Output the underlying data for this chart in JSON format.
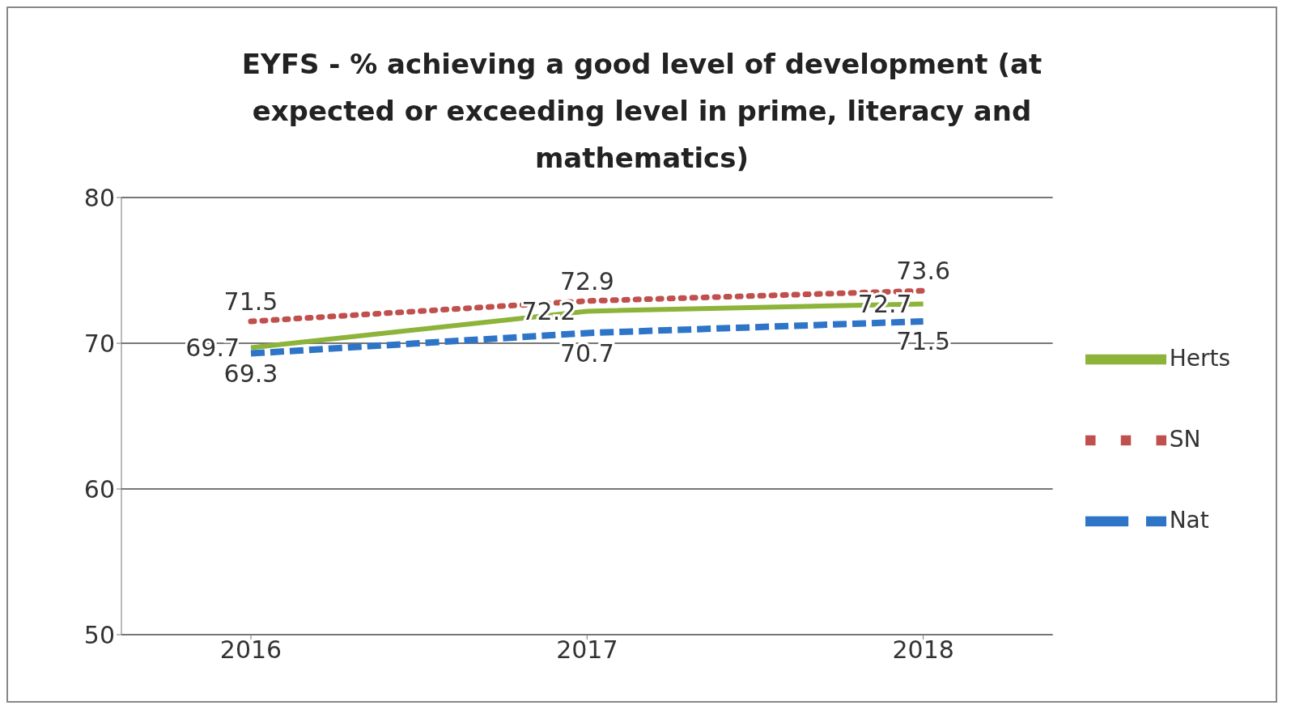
{
  "chart_data": {
    "type": "line",
    "title": "EYFS - % achieving a good level of development (at expected or exceeding level in prime, literacy and mathematics)",
    "categories": [
      "2016",
      "2017",
      "2018"
    ],
    "series": [
      {
        "name": "Herts",
        "color": "#8db33a",
        "line_style": "solid",
        "values": [
          69.7,
          72.2,
          72.7
        ]
      },
      {
        "name": "SN",
        "color": "#c0504d",
        "line_style": "dotted",
        "values": [
          71.5,
          72.9,
          73.6
        ]
      },
      {
        "name": "Nat",
        "color": "#2e75c8",
        "line_style": "dashed",
        "values": [
          69.3,
          70.7,
          71.5
        ]
      }
    ],
    "ylim": [
      50,
      80
    ],
    "yticks": [
      50,
      60,
      70,
      80
    ],
    "grid": "y",
    "legend": "right",
    "marker": "none",
    "data_labels": true
  }
}
